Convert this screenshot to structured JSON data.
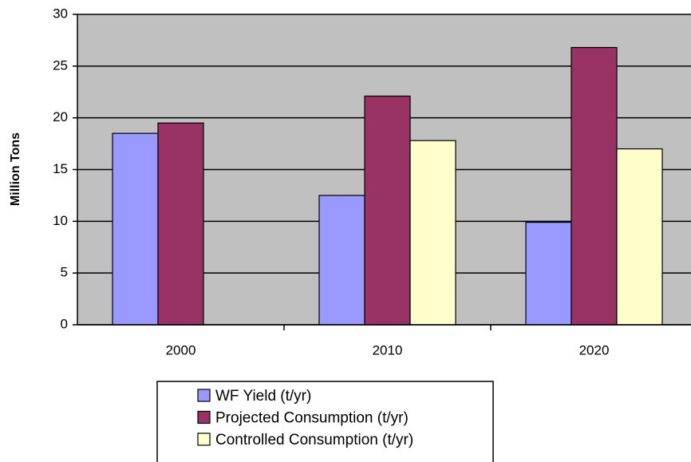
{
  "chart_data": {
    "type": "bar",
    "y_label": "Million Tons",
    "categories": [
      "2000",
      "2010",
      "2020"
    ],
    "series": [
      {
        "name": "WF Yield (t/yr)",
        "color": "#9999ff",
        "values": [
          18.5,
          12.5,
          9.9
        ]
      },
      {
        "name": "Projected Consumption (t/yr)",
        "color": "#993366",
        "values": [
          19.5,
          22.1,
          26.8
        ]
      },
      {
        "name": "Controlled Consumption (t/yr)",
        "color": "#ffffcc",
        "values": [
          null,
          17.8,
          17.0
        ]
      }
    ],
    "ylim": [
      0,
      30
    ],
    "yticks": [
      0,
      5,
      10,
      15,
      20,
      25,
      30
    ],
    "grid": true,
    "plot_background": "#c0c0c0",
    "legend": "bottom"
  }
}
